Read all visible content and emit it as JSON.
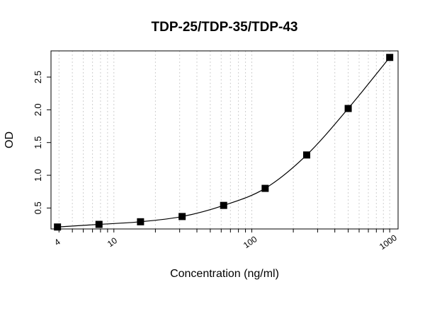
{
  "chart_data": {
    "type": "scatter",
    "title": "TDP-25/TDP-35/TDP-43",
    "xlabel": "Concentration (ng/ml)",
    "ylabel": "OD",
    "x_scale": "log",
    "xlim": [
      3.5,
      1150
    ],
    "ylim": [
      0.18,
      2.9
    ],
    "grid": "vertical minor gridlines on log x-axis",
    "legend": "none",
    "x_ticks": [
      4,
      10,
      100,
      1000
    ],
    "x_tick_labels": [
      "4",
      "10",
      "100",
      "1000"
    ],
    "y_ticks": [
      0.5,
      1.0,
      1.5,
      2.0,
      2.5
    ],
    "y_tick_labels": [
      "0.5",
      "1.0",
      "1.5",
      "2.0",
      "2.5"
    ],
    "series": [
      {
        "x": [
          3.9,
          7.8,
          15.6,
          31.25,
          62.5,
          125,
          250,
          500,
          1000
        ],
        "y": [
          0.21,
          0.25,
          0.29,
          0.37,
          0.54,
          0.8,
          1.31,
          2.02,
          2.8
        ]
      }
    ]
  }
}
